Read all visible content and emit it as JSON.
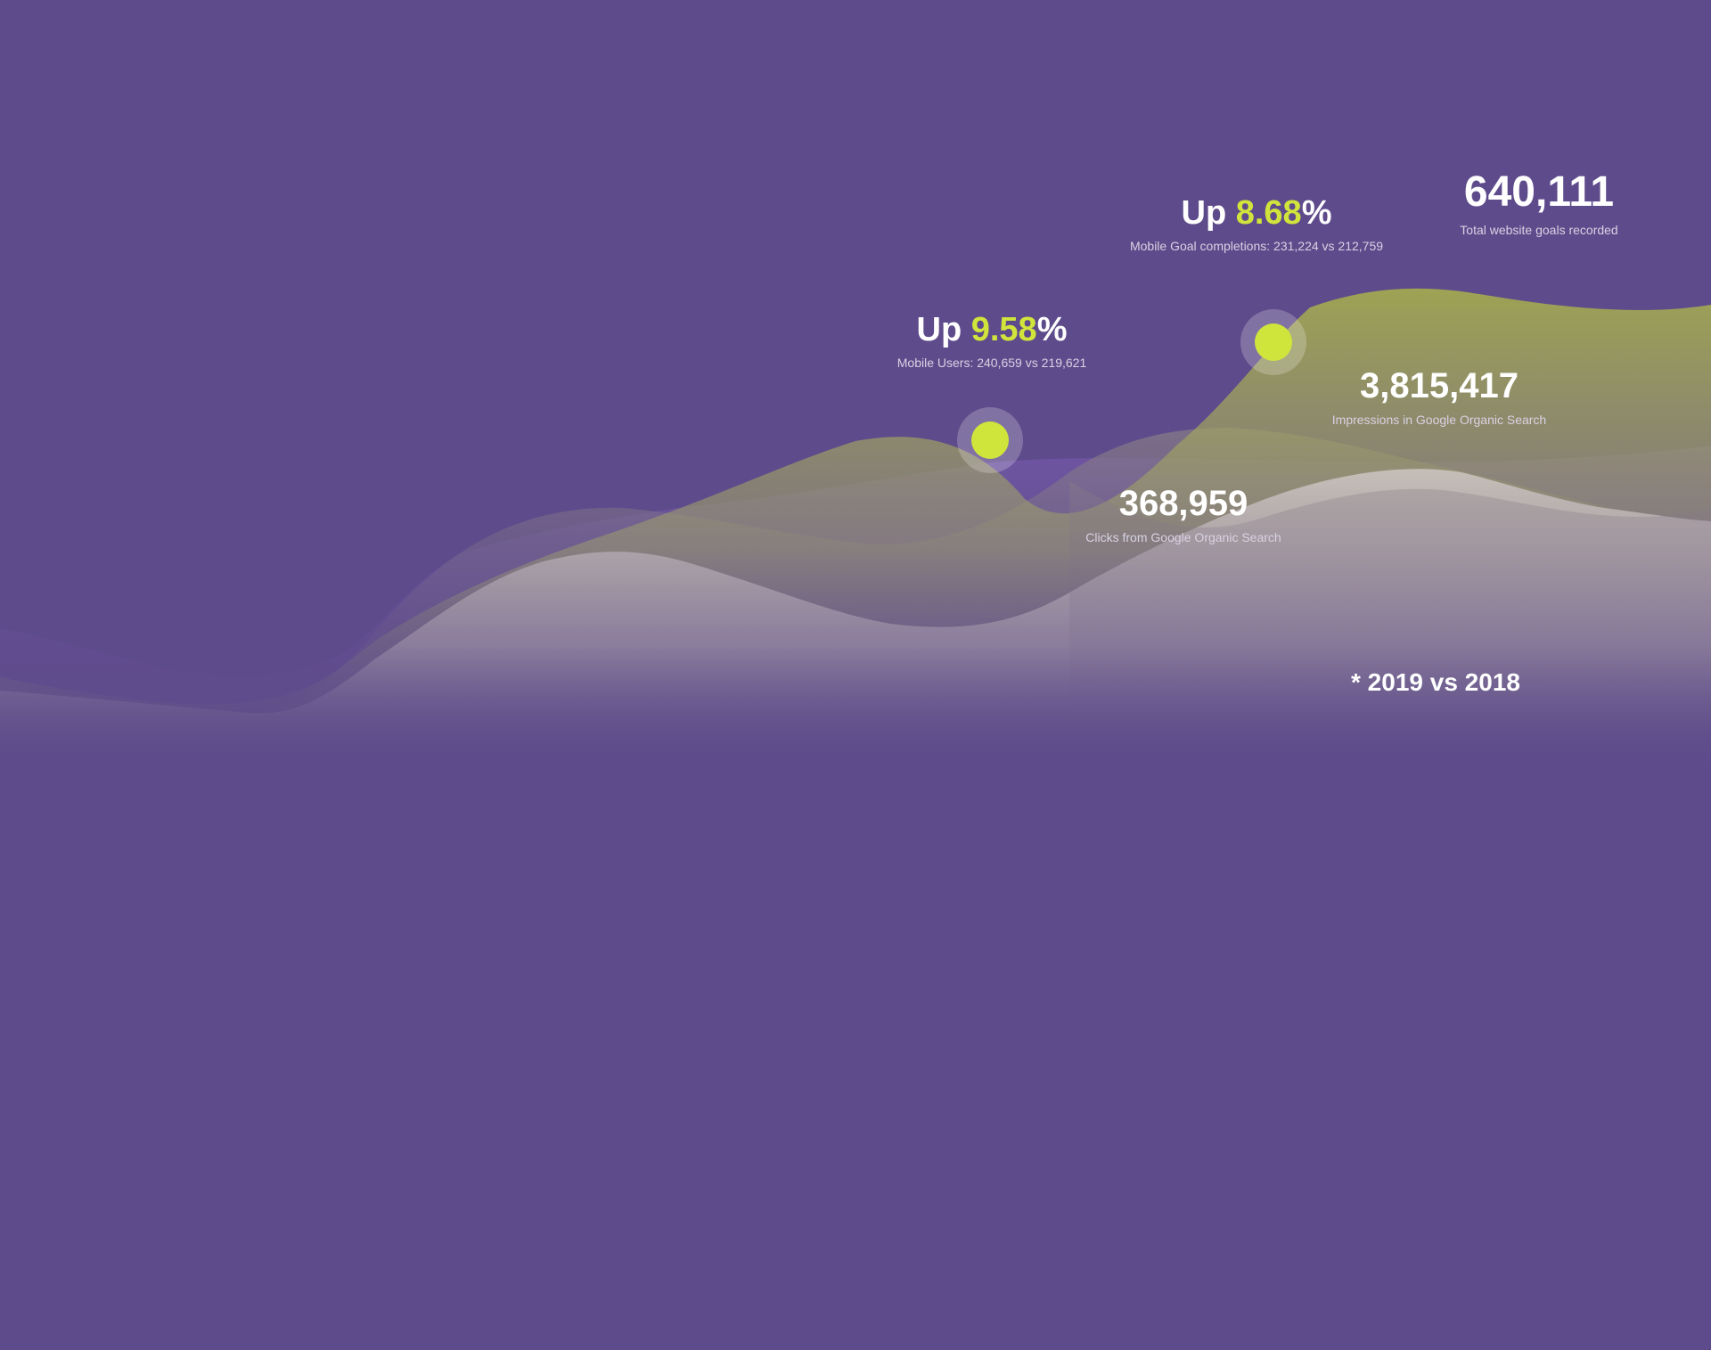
{
  "colors": {
    "background": "#5e4b8b",
    "accent": "#cfe53b",
    "text": "#ffffff",
    "caption": "#d8d2e3"
  },
  "stats": {
    "total_goals": {
      "value": "640,111",
      "caption": "Total website goals recorded"
    },
    "mobile_goals": {
      "prefix": "Up ",
      "value": "8.68",
      "suffix": "%",
      "caption": "Mobile Goal completions: 231,224 vs 212,759"
    },
    "mobile_users": {
      "prefix": "Up ",
      "value": "9.58",
      "suffix": "%",
      "caption": "Mobile Users: 240,659 vs 219,621"
    },
    "impressions": {
      "value": "3,815,417",
      "caption": "Impressions in Google Organic Search"
    },
    "clicks": {
      "value": "368,959",
      "caption": "Clicks from Google Organic Search"
    }
  },
  "footnote": "* 2019 vs 2018"
}
